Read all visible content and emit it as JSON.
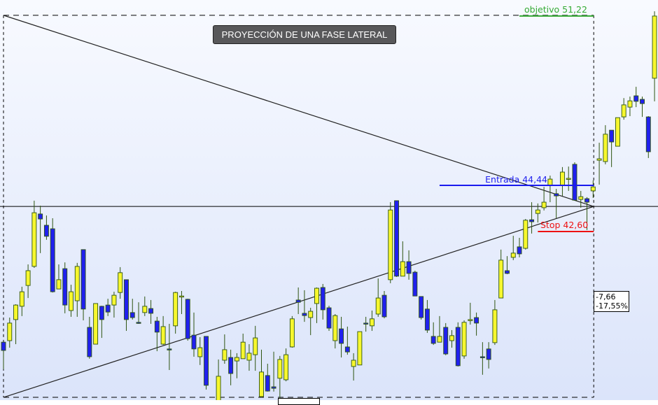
{
  "chart_data": {
    "type": "candlestick",
    "title": "PROYECCIÓN DE UNA FASE LATERAL",
    "ylim": [
      35.88,
      51.83
    ],
    "grid": false,
    "colors": {
      "bullish": "#f7f72e",
      "bearish": "#2020ee",
      "outline": "#2e5410",
      "entrada": "#1a1aee",
      "stop": "#ee1111",
      "objetivo": "#33aa33"
    },
    "candles_ohlc": [
      [
        38.19,
        38.19,
        37.11,
        37.86
      ],
      [
        38.25,
        39.17,
        37.97,
        38.95
      ],
      [
        39.09,
        39.7,
        38.11,
        39.67
      ],
      [
        39.62,
        40.4,
        39.23,
        40.2
      ],
      [
        40.45,
        41.29,
        39.95,
        41.04
      ],
      [
        41.21,
        43.83,
        41.15,
        43.35
      ],
      [
        43.3,
        43.63,
        41.74,
        43.1
      ],
      [
        42.85,
        43.24,
        42.27,
        42.41
      ],
      [
        42.71,
        43.13,
        40.17,
        40.2
      ],
      [
        40.31,
        41.29,
        40.31,
        40.68
      ],
      [
        41.12,
        41.37,
        39.34,
        39.67
      ],
      [
        39.45,
        40.48,
        39.2,
        40.2
      ],
      [
        39.84,
        41.35,
        39.2,
        41.21
      ],
      [
        41.88,
        41.88,
        39.06,
        39.51
      ],
      [
        38.78,
        39.2,
        37.53,
        37.61
      ],
      [
        38.11,
        39.73,
        38.11,
        39.73
      ],
      [
        39.62,
        39.64,
        38.36,
        39.09
      ],
      [
        39.67,
        39.92,
        39.23,
        39.39
      ],
      [
        39.67,
        40.2,
        39.17,
        40.06
      ],
      [
        40.17,
        41.18,
        39.92,
        40.96
      ],
      [
        40.68,
        40.68,
        38.64,
        39.09
      ],
      [
        39.37,
        39.92,
        39.09,
        39.17
      ],
      [
        38.98,
        39.78,
        38.92,
        38.95
      ],
      [
        39.37,
        40.01,
        39.23,
        39.62
      ],
      [
        39.53,
        39.87,
        38.92,
        39.34
      ],
      [
        39.03,
        39.2,
        37.83,
        38.59
      ],
      [
        38.11,
        39.23,
        38.08,
        38.81
      ],
      [
        37.92,
        38.92,
        37.08,
        37.89
      ],
      [
        38.84,
        40.2,
        38.53,
        40.17
      ],
      [
        40.01,
        40.23,
        39.31,
        40.03
      ],
      [
        39.9,
        39.92,
        38.25,
        38.33
      ],
      [
        38.47,
        39.37,
        37.61,
        37.92
      ],
      [
        37.61,
        38.39,
        37.28,
        37.97
      ],
      [
        38.42,
        38.42,
        36.3,
        36.47
      ],
      null,
      [
        35.66,
        37.5,
        35.4,
        36.83
      ],
      [
        37.47,
        38.5,
        37.33,
        37.89
      ],
      [
        37.58,
        37.89,
        36.47,
        36.94
      ],
      [
        37.44,
        37.75,
        36.75,
        37.58
      ],
      [
        37.53,
        38.53,
        37.53,
        38.19
      ],
      [
        37.47,
        38.11,
        37.05,
        37.75
      ],
      [
        37.69,
        38.84,
        37.05,
        38.36
      ],
      [
        36.02,
        37.89,
        35.99,
        37.0
      ],
      [
        36.86,
        37.33,
        36.22,
        36.24
      ],
      [
        36.41,
        37.81,
        36.22,
        36.35
      ],
      [
        36.75,
        37.64,
        35.94,
        37.5
      ],
      [
        36.69,
        37.94,
        36.63,
        37.69
      ],
      [
        38.0,
        39.23,
        37.97,
        39.12
      ],
      [
        39.87,
        40.37,
        39.31,
        39.78
      ],
      [
        39.34,
        40.26,
        39.0,
        39.25
      ],
      [
        39.17,
        39.56,
        38.47,
        39.42
      ],
      [
        39.73,
        40.37,
        38.95,
        40.34
      ],
      [
        40.37,
        40.51,
        39.09,
        39.48
      ],
      [
        39.56,
        39.64,
        38.64,
        38.75
      ],
      [
        38.25,
        39.31,
        37.94,
        39.25
      ],
      [
        38.72,
        39.2,
        37.58,
        38.14
      ],
      [
        38.0,
        38.81,
        37.69,
        37.8
      ],
      [
        37.22,
        37.75,
        36.66,
        37.47
      ],
      [
        37.28,
        38.61,
        37.28,
        38.61
      ],
      [
        38.95,
        39.2,
        38.61,
        38.92
      ],
      [
        38.84,
        39.45,
        38.64,
        39.12
      ],
      [
        39.31,
        40.73,
        39.2,
        39.95
      ],
      [
        40.06,
        40.23,
        39.14,
        39.2
      ],
      [
        40.68,
        43.77,
        40.54,
        43.46
      ],
      [
        43.83,
        43.83,
        40.79,
        40.82
      ],
      [
        40.82,
        42.21,
        40.82,
        41.4
      ],
      [
        41.4,
        41.85,
        40.68,
        40.93
      ],
      [
        40.98,
        41.04,
        40.03,
        40.03
      ],
      [
        40.01,
        40.01,
        39.09,
        39.17
      ],
      [
        39.51,
        39.87,
        38.56,
        38.67
      ],
      [
        38.42,
        38.98,
        38.08,
        38.14
      ],
      [
        38.19,
        39.23,
        38.19,
        38.42
      ],
      [
        38.78,
        38.95,
        37.67,
        37.72
      ],
      [
        38.25,
        38.67,
        37.97,
        38.45
      ],
      [
        38.78,
        38.98,
        37.22,
        37.25
      ],
      [
        37.64,
        39.06,
        37.53,
        38.98
      ],
      [
        39.06,
        39.76,
        38.89,
        39.09
      ],
      [
        39.17,
        39.37,
        38.45,
        38.95
      ],
      [
        37.61,
        38.19,
        36.89,
        37.58
      ],
      [
        37.92,
        38.19,
        37.14,
        37.5
      ],
      [
        38.17,
        39.87,
        38.08,
        39.48
      ],
      [
        39.95,
        41.88,
        39.95,
        41.46
      ],
      [
        41.04,
        41.62,
        40.9,
        40.93
      ],
      [
        41.57,
        42.43,
        41.46,
        41.74
      ],
      [
        41.99,
        42.35,
        41.57,
        41.71
      ],
      [
        41.93,
        43.1,
        41.88,
        43.05
      ],
      [
        43.07,
        43.77,
        42.52,
        42.99
      ],
      [
        43.32,
        43.72,
        42.96,
        43.46
      ],
      [
        43.55,
        44.38,
        43.44,
        43.77
      ],
      [
        44.44,
        44.83,
        43.77,
        44.69
      ],
      [
        44.11,
        44.3,
        43.13,
        44.02
      ],
      [
        44.44,
        45.17,
        44.02,
        44.97
      ],
      [
        44.69,
        45.19,
        44.22,
        44.72
      ],
      [
        45.28,
        45.36,
        43.83,
        43.85
      ],
      [
        43.88,
        44.22,
        43.55,
        43.99
      ],
      [
        43.91,
        43.97,
        42.66,
        43.77
      ],
      [
        44.22,
        44.64,
        43.94,
        44.38
      ],
      [
        45.44,
        46.14,
        44.47,
        45.5
      ],
      [
        45.39,
        46.84,
        45.28,
        46.48
      ],
      [
        46.64,
        46.64,
        45.17,
        46.17
      ],
      [
        46.0,
        47.14,
        46.0,
        47.14
      ],
      [
        47.17,
        47.92,
        47.06,
        47.65
      ],
      [
        47.56,
        47.98,
        47.2,
        47.81
      ],
      [
        48.01,
        48.37,
        47.56,
        47.79
      ],
      [
        47.87,
        47.98,
        47.17,
        47.7
      ],
      [
        47.17,
        47.2,
        45.53,
        45.78
      ],
      [
        48.71,
        51.38,
        47.79,
        51.19
      ]
    ],
    "levels": {
      "horizontal_line": 43.6,
      "entrada": {
        "label": "Entrada 44,44",
        "value": 44.44,
        "from_index": 71
      },
      "stop": {
        "label": "Stop 42,60",
        "value": 42.6,
        "from_index": 87
      },
      "objetivo": {
        "label": "objetivo 51,22",
        "value": 51.22,
        "from_index": 84
      }
    },
    "projection_box": {
      "start_index": 0,
      "end_index": 96.1,
      "top": 51.22,
      "bottom": 35.99,
      "apex": 43.6
    },
    "measure_box": {
      "change": "-7,66",
      "change_pct": "-17,55%"
    }
  }
}
